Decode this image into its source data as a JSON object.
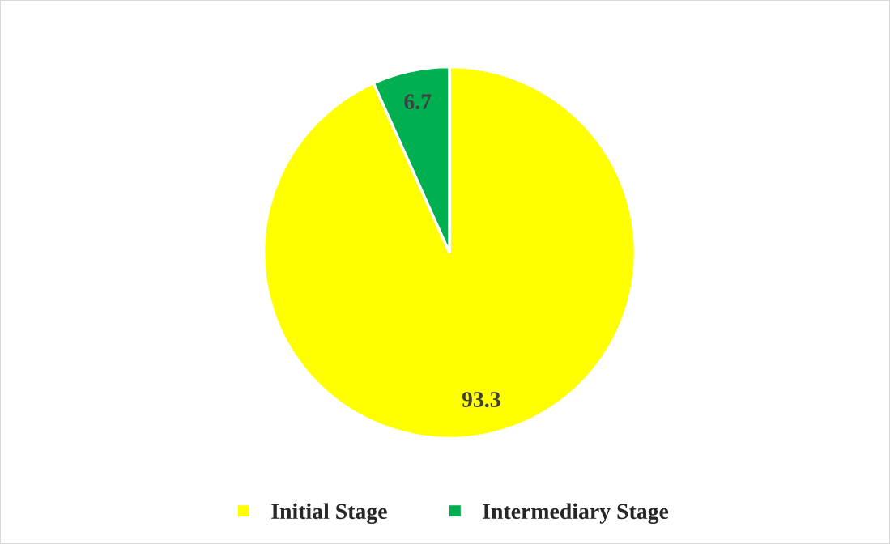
{
  "chart_data": {
    "type": "pie",
    "categories": [
      "Initial Stage",
      "Intermediary Stage"
    ],
    "values": [
      93.3,
      6.7
    ],
    "colors": [
      "#ffff00",
      "#00b050"
    ],
    "data_labels": true,
    "legend": "bottom"
  }
}
